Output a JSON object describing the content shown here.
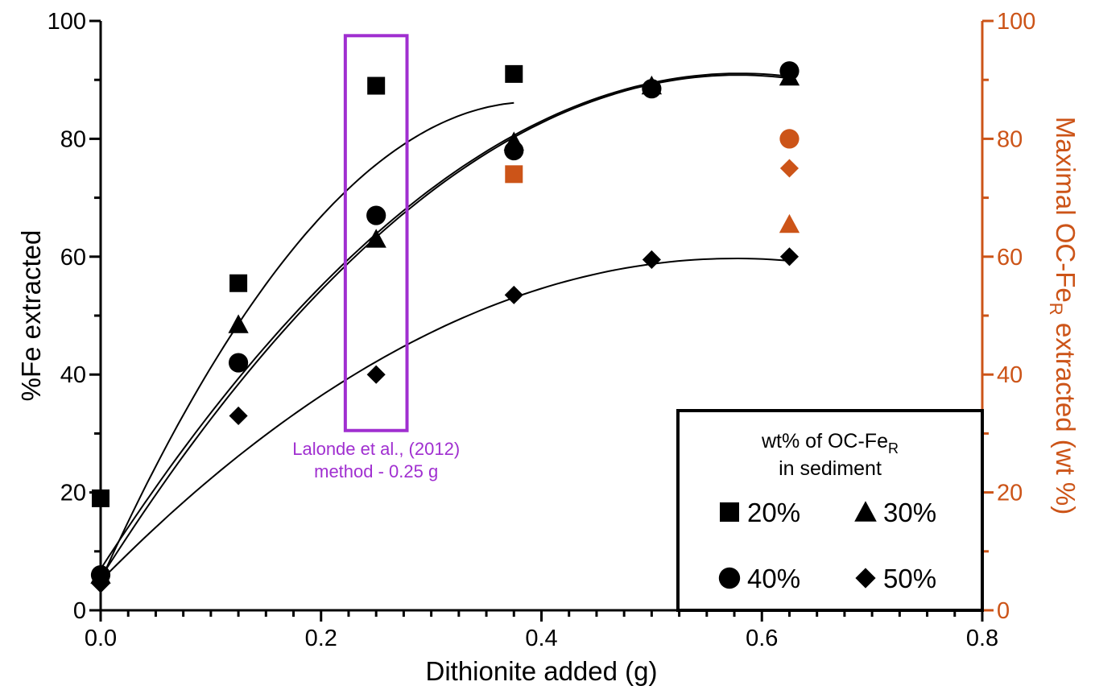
{
  "chart_data": {
    "type": "scatter",
    "xlabel": "Dithionite added (g)",
    "ylabel": "%Fe extracted",
    "ylabel_right": [
      "Maximal OC-Fe",
      "R",
      " extracted (wt %)"
    ],
    "xlim": [
      0,
      0.8
    ],
    "ylim": [
      0,
      100
    ],
    "ylim_right": [
      0,
      100
    ],
    "x_ticks": [
      "0.0",
      "0.2",
      "0.4",
      "0.6",
      "0.8"
    ],
    "x_tick_values": [
      0,
      0.2,
      0.4,
      0.6,
      0.8
    ],
    "y_ticks": [
      "0",
      "20",
      "40",
      "60",
      "80",
      "100"
    ],
    "y_tick_values": [
      0,
      20,
      40,
      60,
      80,
      100
    ],
    "y_right_ticks": [
      "0",
      "20",
      "40",
      "60",
      "80",
      "100"
    ],
    "grid": false,
    "legend_placement": "bottom-right",
    "legend_title": [
      "wt% of OC-Fe",
      "R",
      "in sediment"
    ],
    "colors": {
      "black": "#000000",
      "orange": "#cc5418",
      "purple": "#a02fd0"
    },
    "annotation": {
      "lines": [
        "Lalonde et al., (2012)",
        "method - 0.25 g"
      ],
      "box_x": [
        0.222,
        0.278
      ],
      "box_y": [
        30.5,
        97.5
      ]
    },
    "series": [
      {
        "name": "20%",
        "marker": "square",
        "x": [
          0,
          0.125,
          0.25,
          0.375
        ],
        "y": [
          19,
          55.5,
          89,
          91
        ],
        "fit_x": [
          0,
          0.375
        ],
        "fit_coeffs": [
          5,
          415,
          -530
        ],
        "max_right": {
          "x": 0.375,
          "y": 74
        }
      },
      {
        "name": "30%",
        "marker": "triangle",
        "x": [
          0,
          0.125,
          0.25,
          0.375,
          0.5,
          0.625
        ],
        "y": [
          6,
          48.5,
          63,
          79.5,
          89,
          90.5
        ],
        "fit_x": [
          0,
          0.625
        ],
        "fit_coeffs": [
          7,
          290,
          -250
        ],
        "max_right": {
          "x": 0.625,
          "y": 65.5
        }
      },
      {
        "name": "40%",
        "marker": "circle",
        "x": [
          0,
          0.125,
          0.25,
          0.375,
          0.5,
          0.625
        ],
        "y": [
          6,
          42,
          67,
          78,
          88.5,
          91.5
        ],
        "fit_x": [
          0,
          0.625
        ],
        "fit_coeffs": [
          5.5,
          295,
          -255
        ],
        "max_right": {
          "x": 0.625,
          "y": 80
        }
      },
      {
        "name": "50%",
        "marker": "diamond",
        "x": [
          0,
          0.125,
          0.25,
          0.375,
          0.5,
          0.625
        ],
        "y": [
          4.5,
          33,
          40,
          53.5,
          59.5,
          60
        ],
        "fit_x": [
          0,
          0.625
        ],
        "fit_coeffs": [
          5,
          190,
          -165
        ],
        "max_right": {
          "x": 0.625,
          "y": 75
        }
      }
    ]
  }
}
